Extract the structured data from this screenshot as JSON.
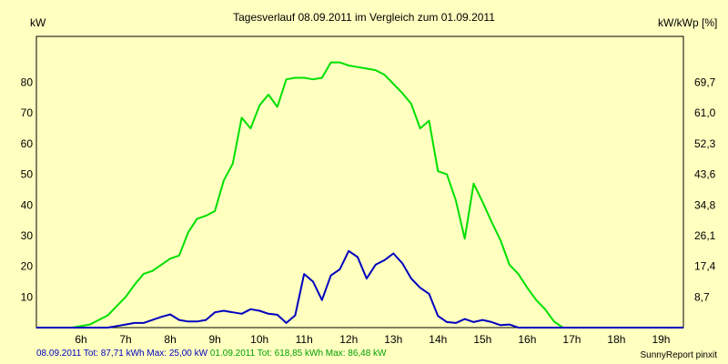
{
  "chart_data": {
    "type": "line",
    "title": "Tagesverlauf 08.09.2011 im Vergleich zum 01.09.2011",
    "ylabel_left": "kW",
    "ylabel_right": "kW/kWp [%]",
    "ylim": [
      0,
      95
    ],
    "y_ticks_left": [
      "10",
      "20",
      "30",
      "40",
      "50",
      "60",
      "70",
      "80"
    ],
    "y_ticks_right": [
      "8,7",
      "17,4",
      "26,1",
      "34,8",
      "43,6",
      "52,3",
      "61,0",
      "69,7"
    ],
    "xlim": [
      5.0,
      19.5
    ],
    "x_tick_labels": [
      "6h",
      "7h",
      "8h",
      "9h",
      "10h",
      "11h",
      "12h",
      "13h",
      "14h",
      "15h",
      "16h",
      "17h",
      "18h",
      "19h"
    ],
    "grid": true,
    "series": [
      {
        "name": "08.09.2011",
        "color": "#0000c0",
        "x": [
          5.0,
          6.6,
          6.8,
          7.0,
          7.2,
          7.4,
          7.6,
          7.8,
          8.0,
          8.2,
          8.4,
          8.6,
          8.8,
          9.0,
          9.2,
          9.4,
          9.6,
          9.8,
          10.0,
          10.2,
          10.4,
          10.6,
          10.8,
          11.0,
          11.2,
          11.4,
          11.6,
          11.8,
          12.0,
          12.2,
          12.4,
          12.6,
          12.8,
          13.0,
          13.2,
          13.4,
          13.6,
          13.8,
          14.0,
          14.2,
          14.4,
          14.6,
          14.8,
          15.0,
          15.2,
          15.4,
          15.6,
          15.8,
          16.0,
          16.2,
          16.4,
          16.6,
          16.8,
          17.0,
          19.5
        ],
        "y": [
          0,
          0,
          0.5,
          1,
          1.5,
          1.5,
          2.5,
          3.5,
          4.3,
          2.5,
          2,
          2,
          2.5,
          5,
          5.5,
          5,
          4.5,
          6,
          5.5,
          4.5,
          4.2,
          1.5,
          4,
          17.5,
          15,
          9,
          17,
          19,
          25,
          23,
          16,
          20.5,
          22,
          24.2,
          21,
          16,
          13,
          11,
          3.8,
          1.8,
          1.5,
          2.8,
          1.8,
          2.5,
          1.8,
          0.8,
          1,
          0,
          0,
          0,
          0,
          0,
          0,
          0,
          0
        ]
      },
      {
        "name": "01.09.2011",
        "color": "#00e000",
        "x": [
          5.0,
          5.4,
          5.8,
          6.2,
          6.6,
          7.0,
          7.2,
          7.4,
          7.6,
          7.8,
          8.0,
          8.2,
          8.4,
          8.6,
          8.8,
          9.0,
          9.2,
          9.4,
          9.6,
          9.8,
          10.0,
          10.2,
          10.4,
          10.6,
          10.8,
          11.0,
          11.2,
          11.4,
          11.6,
          11.8,
          12.0,
          12.2,
          12.4,
          12.6,
          12.8,
          13.0,
          13.2,
          13.4,
          13.6,
          13.8,
          14.0,
          14.2,
          14.4,
          14.6,
          14.8,
          15.0,
          15.2,
          15.4,
          15.6,
          15.8,
          16.0,
          16.2,
          16.4,
          16.6,
          16.8,
          17.0,
          17.2,
          17.4,
          17.6,
          17.8,
          18.0,
          18.2,
          18.4,
          18.6,
          18.8,
          19.0,
          19.5
        ],
        "y": [
          0,
          0,
          0,
          1,
          4,
          10,
          14,
          17.5,
          18.5,
          20.5,
          22.5,
          23.5,
          31,
          35.5,
          36.5,
          38,
          48,
          53.5,
          68.5,
          65,
          72.5,
          76,
          72,
          81,
          81.5,
          81.5,
          81,
          81.5,
          86.5,
          86.5,
          85.5,
          85,
          84.5,
          84,
          82.5,
          79.5,
          76.5,
          73,
          65,
          67.5,
          51,
          50,
          41.5,
          29,
          47,
          41,
          34.5,
          28.5,
          20.5,
          17.5,
          13,
          9,
          6,
          2,
          0,
          0,
          0,
          0,
          0,
          0,
          0,
          0,
          0,
          0,
          0,
          0,
          0
        ]
      }
    ],
    "legend": [
      {
        "text": "08.09.2011 Tot: 87,71 kWh Max: 25,00 kW",
        "color": "#0000c0"
      },
      {
        "text": "01.09.2011 Tot: 618,85 kWh Max: 86,48 kW",
        "color": "#00a000"
      }
    ],
    "plot_background": "#ffffc0",
    "grid_color": "#00c000"
  },
  "credit": "SunnyReport pinxit"
}
